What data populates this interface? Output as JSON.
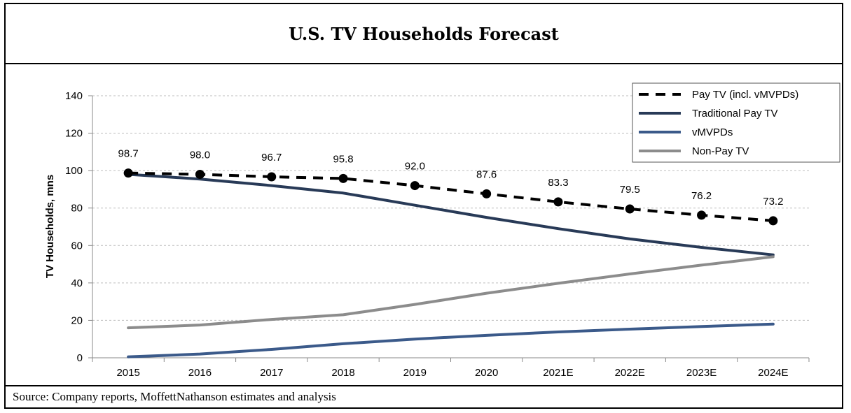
{
  "header": {
    "title": "U.S. TV Households Forecast"
  },
  "footer": {
    "source": "Source: Company reports, MoffettNathanson estimates and analysis"
  },
  "chart_data": {
    "type": "line",
    "title": "U.S. TV Households Forecast",
    "xlabel": "",
    "ylabel": "TV Households, mns",
    "ylim": [
      0,
      140
    ],
    "yticks": [
      0,
      20,
      40,
      60,
      80,
      100,
      120,
      140
    ],
    "grid": true,
    "legend_position": "top-right",
    "categories": [
      "2015",
      "2016",
      "2017",
      "2018",
      "2019",
      "2020",
      "2021E",
      "2022E",
      "2023E",
      "2024E"
    ],
    "series": [
      {
        "name": "Pay TV (incl. vMVPDs)",
        "style": "dashed-markers",
        "color": "#000000",
        "values": [
          98.7,
          98.0,
          96.7,
          95.8,
          92.0,
          87.6,
          83.3,
          79.5,
          76.2,
          73.2
        ],
        "data_labels": [
          "98.7",
          "98.0",
          "96.7",
          "95.8",
          "92.0",
          "87.6",
          "83.3",
          "79.5",
          "76.2",
          "73.2"
        ]
      },
      {
        "name": "Traditional Pay TV",
        "style": "solid",
        "color": "#283a57",
        "values": [
          98,
          95.5,
          92,
          88,
          81.5,
          75,
          69,
          63.5,
          59,
          55
        ]
      },
      {
        "name": "vMVPDs",
        "style": "solid",
        "color": "#3b5a8a",
        "values": [
          0.5,
          2,
          4.5,
          7.5,
          10,
          12,
          13.8,
          15.3,
          16.7,
          18
        ]
      },
      {
        "name": "Non-Pay TV",
        "style": "solid",
        "color": "#8c8c8c",
        "values": [
          16,
          17.5,
          20.5,
          23,
          28.5,
          34.5,
          39.8,
          44.8,
          49.5,
          54
        ]
      }
    ]
  }
}
